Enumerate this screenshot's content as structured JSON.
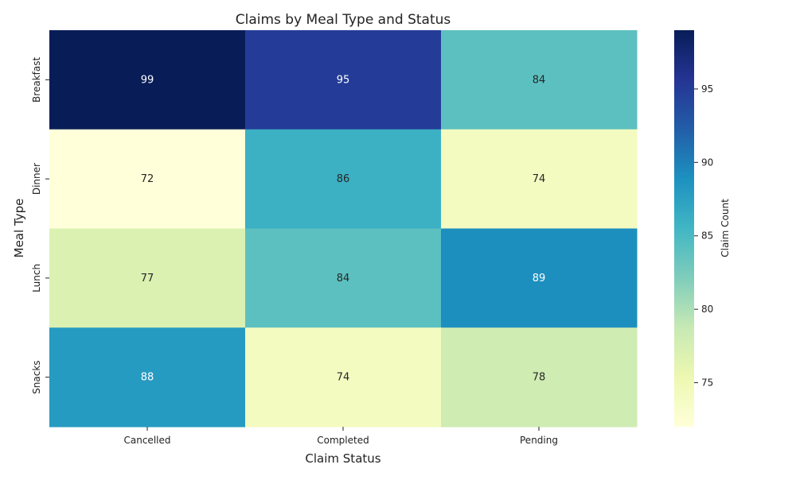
{
  "chart_data": {
    "type": "heatmap",
    "title": "Claims by Meal Type and Status",
    "xlabel": "Claim Status",
    "ylabel": "Meal Type",
    "x_categories": [
      "Cancelled",
      "Completed",
      "Pending"
    ],
    "y_categories": [
      "Breakfast",
      "Dinner",
      "Lunch",
      "Snacks"
    ],
    "values": [
      [
        99,
        95,
        84
      ],
      [
        72,
        86,
        74
      ],
      [
        77,
        84,
        89
      ],
      [
        88,
        74,
        78
      ]
    ],
    "colorbar": {
      "label": "Claim Count",
      "range": [
        72,
        99
      ],
      "ticks": [
        "75",
        "80",
        "85",
        "90",
        "95"
      ],
      "colormap": "YlGnBu"
    },
    "annotations": true,
    "grid": false
  }
}
